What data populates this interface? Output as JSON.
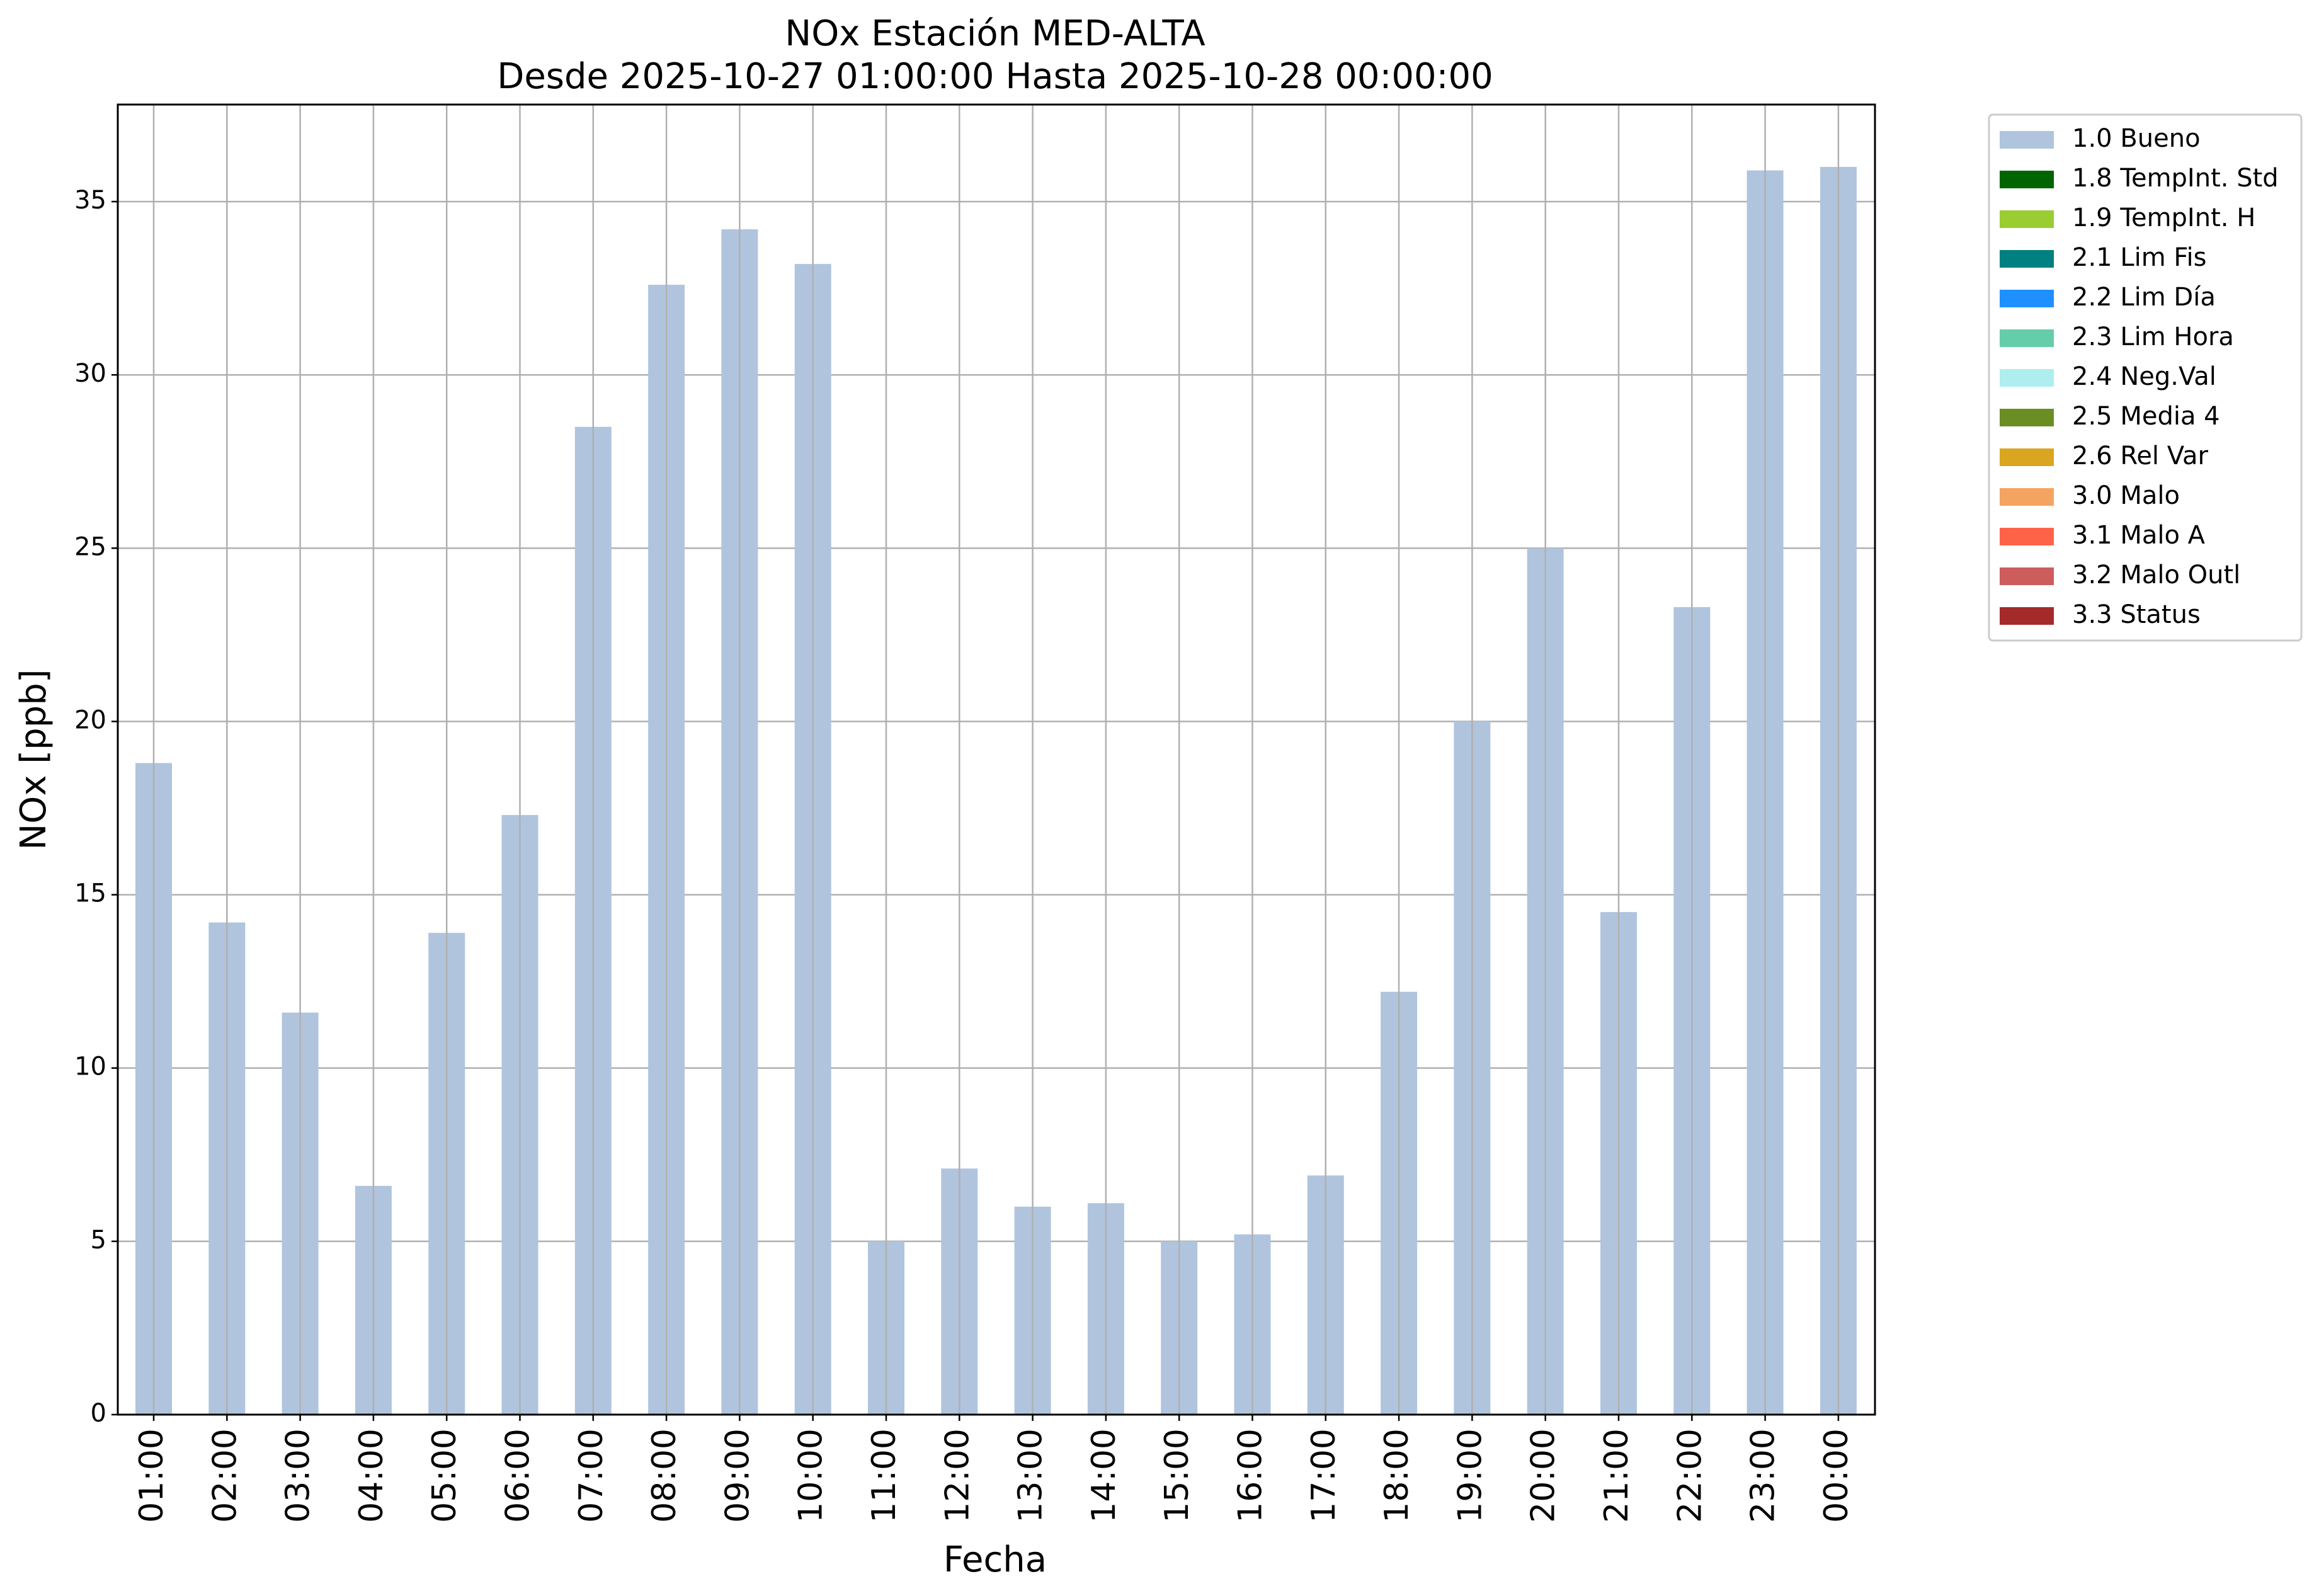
{
  "chart_data": {
    "type": "bar",
    "title": "NOx Estación MED-ALTA",
    "subtitle": "Desde 2025-10-27 01:00:00 Hasta 2025-10-28 00:00:00",
    "xlabel": "Fecha",
    "ylabel": "NOx [ppb]",
    "ylim": [
      0,
      37.8
    ],
    "yticks": [
      0,
      5,
      10,
      15,
      20,
      25,
      30,
      35
    ],
    "grid": true,
    "legend_position": "outside-top-right",
    "categories": [
      "01:00",
      "02:00",
      "03:00",
      "04:00",
      "05:00",
      "06:00",
      "07:00",
      "08:00",
      "09:00",
      "10:00",
      "11:00",
      "12:00",
      "13:00",
      "14:00",
      "15:00",
      "16:00",
      "17:00",
      "18:00",
      "19:00",
      "20:00",
      "21:00",
      "22:00",
      "23:00",
      "00:00"
    ],
    "series": [
      {
        "name": "1.0 Bueno",
        "color": "#b0c4de",
        "values": [
          18.8,
          14.2,
          11.6,
          6.6,
          13.9,
          17.3,
          28.5,
          32.6,
          34.2,
          33.2,
          5.0,
          7.1,
          6.0,
          6.1,
          5.0,
          5.2,
          6.9,
          12.2,
          20.0,
          25.0,
          14.5,
          23.3,
          35.9,
          36.0
        ]
      }
    ],
    "legend": [
      {
        "label": "1.0 Bueno",
        "color": "#b0c4de"
      },
      {
        "label": "1.8 TempInt. Std",
        "color": "#006400"
      },
      {
        "label": "1.9 TempInt. H",
        "color": "#9acd32"
      },
      {
        "label": "2.1 Lim Fis",
        "color": "#008080"
      },
      {
        "label": "2.2 Lim Día",
        "color": "#1e90ff"
      },
      {
        "label": "2.3 Lim Hora",
        "color": "#66cdaa"
      },
      {
        "label": "2.4 Neg.Val",
        "color": "#afeeee"
      },
      {
        "label": "2.5 Media 4",
        "color": "#6b8e23"
      },
      {
        "label": "2.6 Rel Var",
        "color": "#daa520"
      },
      {
        "label": "3.0 Malo",
        "color": "#f4a460"
      },
      {
        "label": "3.1 Malo A",
        "color": "#ff6347"
      },
      {
        "label": "3.2 Malo Outl",
        "color": "#cd5c5c"
      },
      {
        "label": "3.3 Status",
        "color": "#a52a2a"
      }
    ]
  }
}
